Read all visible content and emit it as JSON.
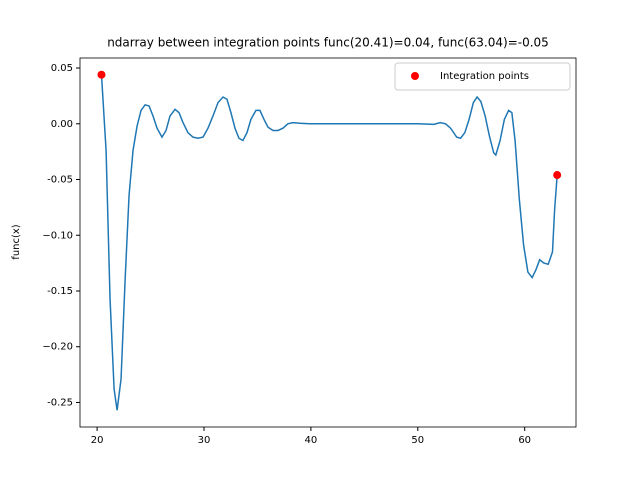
{
  "chart_data": {
    "type": "line",
    "title": "ndarray between integration points func(20.41)=0.04, func(63.04)=-0.05",
    "ylabel": "func(x)",
    "color": "#1f77b4",
    "x": [
      20.41,
      20.84,
      21.21,
      21.59,
      21.87,
      22.24,
      22.62,
      22.99,
      23.36,
      23.74,
      24.11,
      24.49,
      24.86,
      25.23,
      25.61,
      26.07,
      26.45,
      26.82,
      27.29,
      27.66,
      28.04,
      28.5,
      28.97,
      29.44,
      29.91,
      30.37,
      30.84,
      31.31,
      31.78,
      32.15,
      32.52,
      32.9,
      33.27,
      33.64,
      34.02,
      34.39,
      34.86,
      35.23,
      35.61,
      35.98,
      36.45,
      36.92,
      37.38,
      37.85,
      38.32,
      38.97,
      39.9,
      45,
      50,
      51.5,
      52.1,
      52.6,
      53.07,
      53.64,
      54.0,
      54.4,
      54.8,
      55.2,
      55.55,
      55.9,
      56.3,
      56.7,
      57.1,
      57.3,
      57.7,
      58.1,
      58.5,
      58.8,
      59.1,
      59.5,
      59.9,
      60.3,
      60.7,
      61.05,
      61.4,
      61.8,
      62.2,
      62.6,
      62.8,
      63.04
    ],
    "values": [
      0.044,
      -0.024,
      -0.157,
      -0.238,
      -0.257,
      -0.229,
      -0.14,
      -0.064,
      -0.024,
      -0.002,
      0.012,
      0.017,
      0.016,
      0.007,
      -0.004,
      -0.012,
      -0.006,
      0.007,
      0.013,
      0.01,
      0.001,
      -0.008,
      -0.012,
      -0.013,
      -0.012,
      -0.004,
      0.007,
      0.019,
      0.024,
      0.022,
      0.01,
      -0.004,
      -0.013,
      -0.015,
      -0.008,
      0.004,
      0.012,
      0.012,
      0.004,
      -0.003,
      -0.006,
      -0.006,
      -0.004,
      0,
      0.001,
      0.0005,
      0,
      0,
      0,
      -0.0005,
      0.001,
      0,
      -0.004,
      -0.012,
      -0.013,
      -0.008,
      0.004,
      0.019,
      0.024,
      0.02,
      0.007,
      -0.011,
      -0.026,
      -0.028,
      -0.015,
      0.004,
      0.012,
      0.01,
      -0.015,
      -0.068,
      -0.109,
      -0.133,
      -0.138,
      -0.131,
      -0.122,
      -0.125,
      -0.126,
      -0.115,
      -0.077,
      -0.046
    ],
    "scatter": {
      "name": "Integration points",
      "color": "red",
      "x": [
        20.41,
        63.04
      ],
      "values": [
        0.044,
        -0.046
      ]
    },
    "legend": "upper right",
    "xlim": [
      18.4,
      64.8
    ],
    "ylim": [
      -0.272,
      0.059
    ],
    "xticks": [
      20,
      30,
      40,
      50,
      60
    ],
    "yticks": [
      0.05,
      {
        "value": 0,
        "label": "0.00"
      },
      -0.05,
      {
        "value": -0.1,
        "label": "−0.10"
      },
      -0.15,
      {
        "value": -0.2,
        "label": "−0.20"
      },
      -0.25
    ]
  }
}
